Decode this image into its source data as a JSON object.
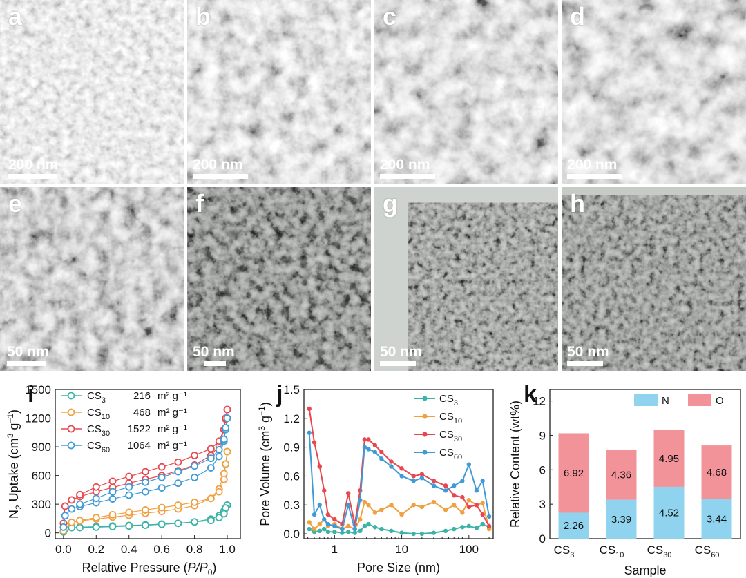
{
  "micrographs": [
    {
      "label": "a",
      "scale": "200 nm"
    },
    {
      "label": "b",
      "scale": "200 nm"
    },
    {
      "label": "c",
      "scale": "200 nm"
    },
    {
      "label": "d",
      "scale": "200 nm"
    },
    {
      "label": "e",
      "scale": "50 nm"
    },
    {
      "label": "f",
      "scale": "50 nm"
    },
    {
      "label": "g",
      "scale": "50 nm"
    },
    {
      "label": "h",
      "scale": "50 nm"
    }
  ],
  "chart_data": [
    {
      "panel": "i",
      "type": "scatter",
      "xlabel": "Relative Pressure (P/P0)",
      "ylabel": "N2 Uptake (cm3 g-1)",
      "xlim": [
        -0.05,
        1.08
      ],
      "ylim": [
        -60,
        1500
      ],
      "xticks": [
        "0.0",
        "0.2",
        "0.4",
        "0.6",
        "0.8",
        "1.0"
      ],
      "yticks": [
        "0",
        "300",
        "600",
        "900",
        "1200",
        "1500"
      ],
      "legend_position": "top-left",
      "legend_unit": "m² g⁻¹",
      "series": [
        {
          "name": "CS3",
          "sub": "3",
          "area": "216",
          "color": "#3bb3a6",
          "x": [
            0.0,
            0.01,
            0.05,
            0.1,
            0.2,
            0.3,
            0.4,
            0.5,
            0.6,
            0.7,
            0.8,
            0.9,
            0.95,
            0.98,
            0.99,
            1.0
          ],
          "ads": [
            10,
            40,
            55,
            60,
            66,
            72,
            78,
            84,
            92,
            100,
            115,
            145,
            180,
            230,
            260,
            290
          ],
          "des": [
            290,
            260,
            200,
            160,
            130,
            115,
            100,
            90,
            80,
            72,
            66,
            60,
            55
          ]
        },
        {
          "name": "CS10",
          "sub": "10",
          "area": "468",
          "color": "#f0a040",
          "x": [
            0.0,
            0.01,
            0.05,
            0.1,
            0.2,
            0.3,
            0.4,
            0.5,
            0.6,
            0.7,
            0.8,
            0.9,
            0.95,
            0.98,
            0.99,
            1.0
          ],
          "ads": [
            20,
            80,
            110,
            125,
            145,
            165,
            185,
            205,
            225,
            250,
            285,
            360,
            460,
            620,
            720,
            850
          ],
          "des": [
            850,
            720,
            560,
            430,
            360,
            320,
            290,
            265,
            240,
            215,
            190,
            160,
            130
          ]
        },
        {
          "name": "CS30",
          "sub": "30",
          "area": "1522",
          "color": "#e8474d",
          "x": [
            0.0,
            0.01,
            0.05,
            0.1,
            0.2,
            0.3,
            0.4,
            0.5,
            0.6,
            0.7,
            0.8,
            0.9,
            0.95,
            0.98,
            0.99,
            1.0
          ],
          "ads": [
            100,
            280,
            345,
            380,
            430,
            475,
            520,
            560,
            600,
            650,
            710,
            810,
            910,
            1080,
            1190,
            1290
          ],
          "des": [
            1290,
            1200,
            1080,
            960,
            880,
            810,
            740,
            690,
            640,
            590,
            540,
            480,
            400
          ]
        },
        {
          "name": "CS60",
          "sub": "60",
          "area": "1064",
          "color": "#3f9bd8",
          "x": [
            0.0,
            0.01,
            0.05,
            0.1,
            0.2,
            0.3,
            0.4,
            0.5,
            0.6,
            0.7,
            0.8,
            0.9,
            0.95,
            0.98,
            0.99,
            1.0
          ],
          "ads": [
            60,
            180,
            250,
            275,
            315,
            355,
            395,
            430,
            470,
            520,
            580,
            680,
            800,
            960,
            1080,
            1200
          ],
          "des": [
            1200,
            1100,
            980,
            870,
            780,
            700,
            640,
            580,
            530,
            480,
            430,
            360,
            300
          ]
        }
      ]
    },
    {
      "panel": "j",
      "type": "line",
      "xscale": "log",
      "xlabel": "Pore Size (nm)",
      "ylabel": "Pore Volume (cm3 g-1)",
      "xlim": [
        0.35,
        230
      ],
      "ylim": [
        -0.05,
        1.5
      ],
      "xticks": [
        "1",
        "10",
        "100"
      ],
      "yticks": [
        "0.0",
        "0.3",
        "0.6",
        "0.9",
        "1.2",
        "1.5"
      ],
      "legend_position": "top-right",
      "series": [
        {
          "name": "CS3",
          "sub": "3",
          "color": "#3bb3a6",
          "x": [
            0.42,
            0.5,
            0.6,
            0.7,
            0.8,
            1.0,
            1.3,
            1.6,
            2.0,
            2.4,
            2.8,
            3.2,
            4,
            5,
            7,
            10,
            15,
            20,
            30,
            45,
            60,
            80,
            100,
            130,
            160,
            200
          ],
          "y": [
            0.05,
            0.02,
            0.03,
            0.05,
            0.02,
            0.02,
            0.01,
            0.02,
            0.01,
            0.03,
            0.08,
            0.1,
            0.07,
            0.05,
            0.03,
            0.01,
            0.0,
            0.0,
            0.01,
            0.03,
            0.05,
            0.07,
            0.08,
            0.06,
            0.1,
            0.07
          ]
        },
        {
          "name": "CS10",
          "sub": "10",
          "color": "#f0a040",
          "x": [
            0.42,
            0.5,
            0.6,
            0.7,
            0.8,
            1.0,
            1.3,
            1.6,
            2.0,
            2.4,
            2.8,
            3.2,
            4,
            5,
            7,
            10,
            15,
            20,
            30,
            45,
            60,
            80,
            100,
            130,
            160,
            200
          ],
          "y": [
            0.12,
            0.05,
            0.1,
            0.15,
            0.08,
            0.1,
            0.05,
            0.08,
            0.05,
            0.15,
            0.33,
            0.3,
            0.22,
            0.25,
            0.3,
            0.2,
            0.3,
            0.28,
            0.33,
            0.25,
            0.3,
            0.22,
            0.35,
            0.3,
            0.32,
            0.05
          ]
        },
        {
          "name": "CS30",
          "sub": "30",
          "color": "#e8474d",
          "x": [
            0.42,
            0.5,
            0.6,
            0.7,
            0.8,
            1.0,
            1.3,
            1.6,
            2.0,
            2.4,
            2.8,
            3.2,
            4,
            5,
            7,
            10,
            15,
            20,
            30,
            45,
            60,
            80,
            100,
            130,
            160,
            200
          ],
          "y": [
            1.3,
            0.95,
            0.7,
            0.45,
            0.2,
            0.15,
            0.1,
            0.42,
            0.1,
            0.45,
            0.98,
            0.98,
            0.92,
            0.85,
            0.75,
            0.68,
            0.6,
            0.62,
            0.55,
            0.5,
            0.4,
            0.38,
            0.28,
            0.3,
            0.2,
            0.08
          ]
        },
        {
          "name": "CS60",
          "sub": "60",
          "color": "#3f9bd8",
          "x": [
            0.42,
            0.5,
            0.6,
            0.7,
            0.8,
            1.0,
            1.3,
            1.6,
            2.0,
            2.4,
            2.8,
            3.2,
            4,
            5,
            7,
            10,
            15,
            20,
            30,
            45,
            60,
            80,
            100,
            130,
            160,
            200
          ],
          "y": [
            1.05,
            0.2,
            0.3,
            0.15,
            0.1,
            0.08,
            0.05,
            0.3,
            0.05,
            0.35,
            0.9,
            0.88,
            0.85,
            0.78,
            0.7,
            0.6,
            0.55,
            0.58,
            0.5,
            0.45,
            0.5,
            0.55,
            0.72,
            0.45,
            0.55,
            0.18
          ]
        }
      ]
    },
    {
      "panel": "k",
      "type": "bar",
      "stacked": true,
      "xlabel": "Sample",
      "ylabel": "Relative Content (wt%)",
      "ylim": [
        0,
        13
      ],
      "yticks": [
        "0",
        "3",
        "6",
        "9",
        "12"
      ],
      "legend_position": "top-right",
      "categories": [
        "CS3",
        "CS10",
        "CS30",
        "CS60"
      ],
      "category_subs": [
        "3",
        "10",
        "30",
        "60"
      ],
      "series": [
        {
          "name": "N",
          "color": "#8fd3ee",
          "values": [
            2.26,
            3.39,
            4.52,
            3.44
          ],
          "labels": [
            "2.26",
            "3.39",
            "4.52",
            "3.44"
          ]
        },
        {
          "name": "O",
          "color": "#f2939a",
          "values": [
            6.92,
            4.36,
            4.95,
            4.68
          ],
          "labels": [
            "6.92",
            "4.36",
            "4.95",
            "4.68"
          ]
        }
      ]
    }
  ]
}
